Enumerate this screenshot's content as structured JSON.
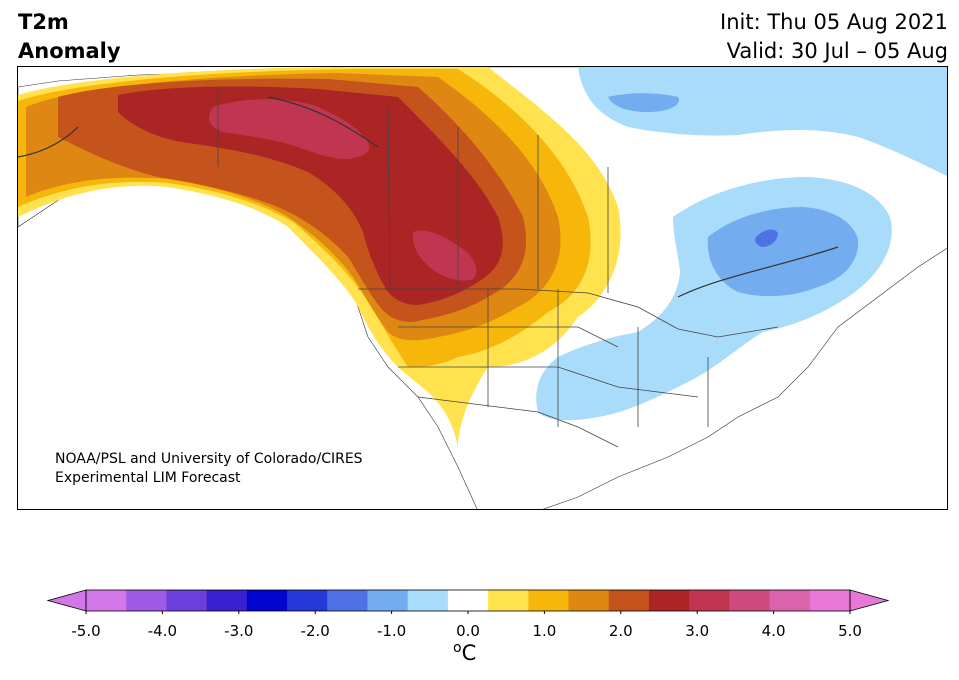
{
  "title": {
    "variable": "T2m",
    "subtitle": "Anomaly",
    "init": "Init: Thu 05 Aug 2021",
    "valid": "Valid: 30 Jul – 05 Aug"
  },
  "credit": {
    "line1": "NOAA/PSL and University of Colorado/CIRES",
    "line2": "Experimental LIM Forecast"
  },
  "colorbar": {
    "labels": [
      "-5.0",
      "-4.0",
      "-3.0",
      "-2.0",
      "-1.0",
      "0.0",
      "1.0",
      "2.0",
      "3.0",
      "4.0",
      "5.0"
    ],
    "unit_sup": "o",
    "unit": "C",
    "min": -5.0,
    "max": 5.0,
    "step": 0.5,
    "colors": [
      "#d277e8",
      "#9f5be6",
      "#6c3fdc",
      "#3a1fd2",
      "#0005cf",
      "#2638d6",
      "#4e72e3",
      "#74acf0",
      "#a9dbfb",
      "#ffffff",
      "#ffe24e",
      "#f6b70a",
      "#de8713",
      "#c4531c",
      "#ab2525",
      "#c03651",
      "#cd4c7d",
      "#da63ab",
      "#e878d6"
    ],
    "extend_low_color": "#d277e8",
    "extend_high_color": "#e878d6"
  }
}
